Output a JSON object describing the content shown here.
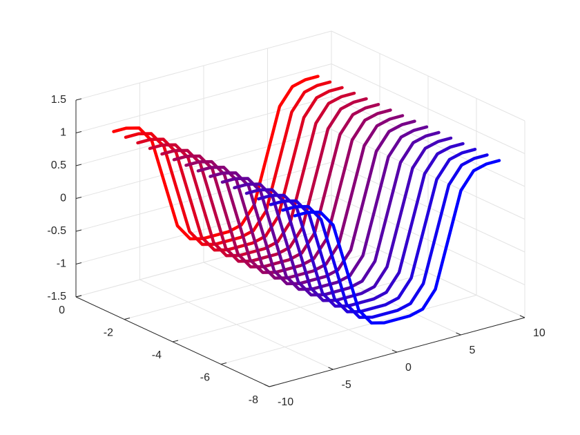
{
  "chart_data": {
    "type": "line3d",
    "x": [
      -8,
      -7,
      -6,
      -5,
      -4,
      -3,
      -2,
      -1,
      0,
      1,
      2,
      3,
      4,
      5,
      6,
      7,
      8
    ],
    "series": [
      {
        "y": -0.5,
        "color": "#ff0000",
        "values": [
          1,
          1,
          0.95,
          0.7,
          0,
          -0.7,
          -0.95,
          -1,
          -1,
          -1,
          -0.95,
          -0.7,
          0,
          0.7,
          0.95,
          1,
          1
        ]
      },
      {
        "y": -1,
        "color": "#ee0011",
        "values": [
          1,
          1,
          0.95,
          0.7,
          0,
          -0.7,
          -0.95,
          -1,
          -1,
          -1,
          -0.95,
          -0.7,
          0,
          0.7,
          0.95,
          1,
          1
        ]
      },
      {
        "y": -1.5,
        "color": "#dd0022",
        "values": [
          1,
          1,
          0.95,
          0.7,
          0,
          -0.7,
          -0.95,
          -1,
          -1,
          -1,
          -0.95,
          -0.7,
          0,
          0.7,
          0.95,
          1,
          1
        ]
      },
      {
        "y": -2,
        "color": "#cc0033",
        "values": [
          1,
          1,
          0.95,
          0.7,
          0,
          -0.7,
          -0.95,
          -1,
          -1,
          -1,
          -0.95,
          -0.7,
          0,
          0.7,
          0.95,
          1,
          1
        ]
      },
      {
        "y": -2.5,
        "color": "#bb0044",
        "values": [
          1,
          1,
          0.95,
          0.7,
          0,
          -0.7,
          -0.95,
          -1,
          -1,
          -1,
          -0.95,
          -0.7,
          0,
          0.7,
          0.95,
          1,
          1
        ]
      },
      {
        "y": -3,
        "color": "#aa0055",
        "values": [
          1,
          1,
          0.95,
          0.7,
          0,
          -0.7,
          -0.95,
          -1,
          -1,
          -1,
          -0.95,
          -0.7,
          0,
          0.7,
          0.95,
          1,
          1
        ]
      },
      {
        "y": -3.5,
        "color": "#990066",
        "values": [
          1,
          1,
          0.95,
          0.7,
          0,
          -0.7,
          -0.95,
          -1,
          -1,
          -1,
          -0.95,
          -0.7,
          0,
          0.7,
          0.95,
          1,
          1
        ]
      },
      {
        "y": -4,
        "color": "#880077",
        "values": [
          1,
          1,
          0.95,
          0.7,
          0,
          -0.7,
          -0.95,
          -1,
          -1,
          -1,
          -0.95,
          -0.7,
          0,
          0.7,
          0.95,
          1,
          1
        ]
      },
      {
        "y": -4.5,
        "color": "#770088",
        "values": [
          1,
          1,
          0.95,
          0.7,
          0,
          -0.7,
          -0.95,
          -1,
          -1,
          -1,
          -0.95,
          -0.7,
          0,
          0.7,
          0.95,
          1,
          1
        ]
      },
      {
        "y": -5,
        "color": "#660099",
        "values": [
          1,
          1,
          0.95,
          0.7,
          0,
          -0.7,
          -0.95,
          -1,
          -1,
          -1,
          -0.95,
          -0.7,
          0,
          0.7,
          0.95,
          1,
          1
        ]
      },
      {
        "y": -5.5,
        "color": "#5500aa",
        "values": [
          1,
          1,
          0.95,
          0.7,
          0,
          -0.7,
          -0.95,
          -1,
          -1,
          -1,
          -0.95,
          -0.7,
          0,
          0.7,
          0.95,
          1,
          1
        ]
      },
      {
        "y": -6,
        "color": "#4400bb",
        "values": [
          1,
          1,
          0.95,
          0.7,
          0,
          -0.7,
          -0.95,
          -1,
          -1,
          -1,
          -0.95,
          -0.7,
          0,
          0.7,
          0.95,
          1,
          1
        ]
      },
      {
        "y": -6.5,
        "color": "#3300cc",
        "values": [
          1,
          1,
          0.95,
          0.7,
          0,
          -0.7,
          -0.95,
          -1,
          -1,
          -1,
          -0.95,
          -0.7,
          0,
          0.7,
          0.95,
          1,
          1
        ]
      },
      {
        "y": -7,
        "color": "#2200dd",
        "values": [
          1,
          1,
          0.95,
          0.7,
          0,
          -0.7,
          -0.95,
          -1,
          -1,
          -1,
          -0.95,
          -0.7,
          0,
          0.7,
          0.95,
          1,
          1
        ]
      },
      {
        "y": -7.5,
        "color": "#1100ee",
        "values": [
          1,
          1,
          0.95,
          0.7,
          0,
          -0.7,
          -0.95,
          -1,
          -1,
          -1,
          -0.95,
          -0.7,
          0,
          0.7,
          0.95,
          1,
          1
        ]
      },
      {
        "y": -8,
        "color": "#0000ff",
        "values": [
          1,
          1,
          0.95,
          0.7,
          0,
          -0.7,
          -0.95,
          -1,
          -1,
          -1,
          -0.95,
          -0.7,
          0,
          0.7,
          0.95,
          1,
          1
        ]
      }
    ],
    "xlim": [
      -10,
      10
    ],
    "xticks": [
      -10,
      -5,
      0,
      5,
      10
    ],
    "ylim": [
      -8,
      0
    ],
    "yticks": [
      0,
      -2,
      -4,
      -6,
      -8
    ],
    "zlim": [
      -1.5,
      1.5
    ],
    "zticks": [
      -1.5,
      -1,
      -0.5,
      0,
      0.5,
      1,
      1.5
    ],
    "grid": true
  }
}
